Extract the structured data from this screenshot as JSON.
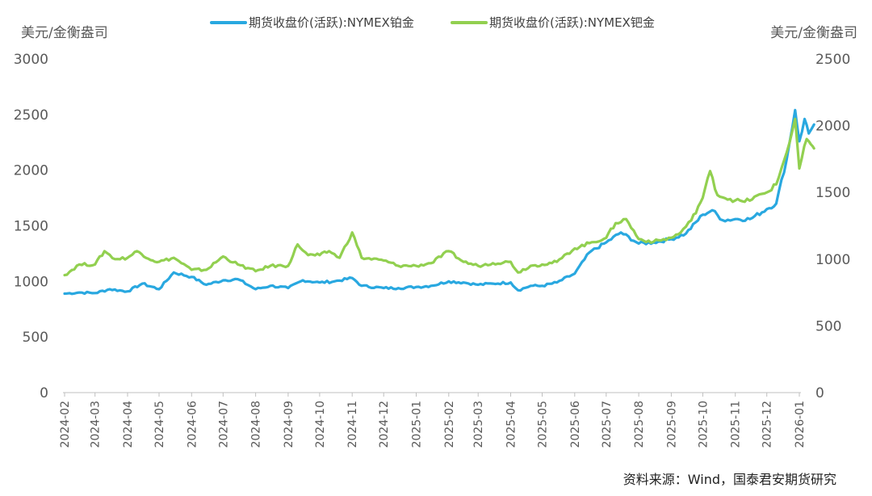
{
  "chart_data": {
    "type": "line",
    "y_left": {
      "label": "美元/金衡盎司",
      "ticks": [
        "0",
        "500",
        "1000",
        "1500",
        "2000",
        "2500",
        "3000"
      ],
      "range": [
        0,
        3000
      ]
    },
    "y_right": {
      "label": "美元/金衡盎司",
      "ticks": [
        "0",
        "500",
        "1000",
        "1500",
        "2000",
        "2500"
      ],
      "range": [
        0,
        2500
      ]
    },
    "x_ticks": [
      "2024-02",
      "2024-03",
      "2024-04",
      "2024-05",
      "2024-06",
      "2024-07",
      "2024-08",
      "2024-09",
      "2024-10",
      "2024-11",
      "2024-12",
      "2025-01",
      "2025-02",
      "2025-03",
      "2025-04",
      "2025-05",
      "2025-06",
      "2025-07",
      "2025-08",
      "2025-09",
      "2025-10",
      "2025-11",
      "2025-12",
      "2026-01"
    ],
    "grid": false,
    "legend_position": "top",
    "series": [
      {
        "name": "期货收盘价(活跃):NYMEX铂金",
        "axis": "left",
        "color": "#29a8e0",
        "values": [
          [
            "2024-02",
            890
          ],
          [
            "2024-02-15",
            900
          ],
          [
            "2024-03",
            895
          ],
          [
            "2024-03-15",
            930
          ],
          [
            "2024-04",
            910
          ],
          [
            "2024-04-15",
            980
          ],
          [
            "2024-05",
            930
          ],
          [
            "2024-05-15",
            1080
          ],
          [
            "2024-06",
            1040
          ],
          [
            "2024-06-15",
            970
          ],
          [
            "2024-07",
            1010
          ],
          [
            "2024-07-15",
            1020
          ],
          [
            "2024-08",
            930
          ],
          [
            "2024-08-15",
            960
          ],
          [
            "2024-09",
            940
          ],
          [
            "2024-09-15",
            1010
          ],
          [
            "2024-10",
            990
          ],
          [
            "2024-10-15",
            1000
          ],
          [
            "2024-11",
            1030
          ],
          [
            "2024-11-10",
            960
          ],
          [
            "2024-12",
            940
          ],
          [
            "2024-12-15",
            940
          ],
          [
            "2025-01",
            950
          ],
          [
            "2025-01-15",
            960
          ],
          [
            "2025-02",
            1000
          ],
          [
            "2025-02-15",
            990
          ],
          [
            "2025-03",
            970
          ],
          [
            "2025-03-15",
            980
          ],
          [
            "2025-04",
            990
          ],
          [
            "2025-04-08",
            920
          ],
          [
            "2025-04-20",
            960
          ],
          [
            "2025-05",
            960
          ],
          [
            "2025-05-15",
            990
          ],
          [
            "2025-06",
            1070
          ],
          [
            "2025-06-15",
            1260
          ],
          [
            "2025-07",
            1350
          ],
          [
            "2025-07-15",
            1440
          ],
          [
            "2025-08",
            1340
          ],
          [
            "2025-08-15",
            1350
          ],
          [
            "2025-09",
            1380
          ],
          [
            "2025-09-15",
            1430
          ],
          [
            "2025-10",
            1600
          ],
          [
            "2025-10-10",
            1640
          ],
          [
            "2025-10-20",
            1550
          ],
          [
            "2025-11",
            1560
          ],
          [
            "2025-11-15",
            1560
          ],
          [
            "2025-12",
            1650
          ],
          [
            "2025-12-10",
            1700
          ],
          [
            "2025-12-20",
            2100
          ],
          [
            "2025-12-28",
            2540
          ],
          [
            "2026-01",
            2260
          ],
          [
            "2026-01-06",
            2460
          ],
          [
            "2026-01-10",
            2330
          ],
          [
            "2026-01-15",
            2410
          ]
        ]
      },
      {
        "name": "期货收盘价(活跃):NYMEX钯金",
        "axis": "right",
        "color": "#92d050",
        "values": [
          [
            "2024-02",
            880
          ],
          [
            "2024-02-15",
            960
          ],
          [
            "2024-03",
            960
          ],
          [
            "2024-03-10",
            1060
          ],
          [
            "2024-03-20",
            1000
          ],
          [
            "2024-04",
            1010
          ],
          [
            "2024-04-10",
            1060
          ],
          [
            "2024-04-25",
            990
          ],
          [
            "2024-05",
            980
          ],
          [
            "2024-05-15",
            1010
          ],
          [
            "2024-06",
            920
          ],
          [
            "2024-06-15",
            920
          ],
          [
            "2024-07",
            1020
          ],
          [
            "2024-07-15",
            960
          ],
          [
            "2024-08",
            910
          ],
          [
            "2024-08-15",
            950
          ],
          [
            "2024-09",
            950
          ],
          [
            "2024-09-10",
            1110
          ],
          [
            "2024-09-20",
            1030
          ],
          [
            "2024-10",
            1030
          ],
          [
            "2024-10-10",
            1060
          ],
          [
            "2024-10-20",
            1010
          ],
          [
            "2024-11",
            1200
          ],
          [
            "2024-11-10",
            1010
          ],
          [
            "2024-12",
            990
          ],
          [
            "2024-12-15",
            950
          ],
          [
            "2025-01",
            950
          ],
          [
            "2025-01-15",
            970
          ],
          [
            "2025-02",
            1060
          ],
          [
            "2025-02-15",
            980
          ],
          [
            "2025-03",
            950
          ],
          [
            "2025-03-15",
            970
          ],
          [
            "2025-04",
            980
          ],
          [
            "2025-04-08",
            900
          ],
          [
            "2025-04-20",
            950
          ],
          [
            "2025-05",
            960
          ],
          [
            "2025-05-15",
            980
          ],
          [
            "2025-06",
            1080
          ],
          [
            "2025-06-15",
            1120
          ],
          [
            "2025-07",
            1160
          ],
          [
            "2025-07-10",
            1270
          ],
          [
            "2025-07-20",
            1300
          ],
          [
            "2025-08",
            1150
          ],
          [
            "2025-08-15",
            1130
          ],
          [
            "2025-09",
            1160
          ],
          [
            "2025-09-10",
            1200
          ],
          [
            "2025-09-20",
            1290
          ],
          [
            "2025-10",
            1460
          ],
          [
            "2025-10-08",
            1660
          ],
          [
            "2025-10-15",
            1480
          ],
          [
            "2025-11",
            1440
          ],
          [
            "2025-11-10",
            1430
          ],
          [
            "2025-12",
            1500
          ],
          [
            "2025-12-10",
            1560
          ],
          [
            "2025-12-20",
            1800
          ],
          [
            "2025-12-28",
            2050
          ],
          [
            "2026-01",
            1680
          ],
          [
            "2026-01-08",
            1900
          ],
          [
            "2026-01-12",
            1860
          ],
          [
            "2026-01-15",
            1830
          ]
        ]
      }
    ]
  },
  "source": "资料来源：Wind，国泰君安期货研究"
}
